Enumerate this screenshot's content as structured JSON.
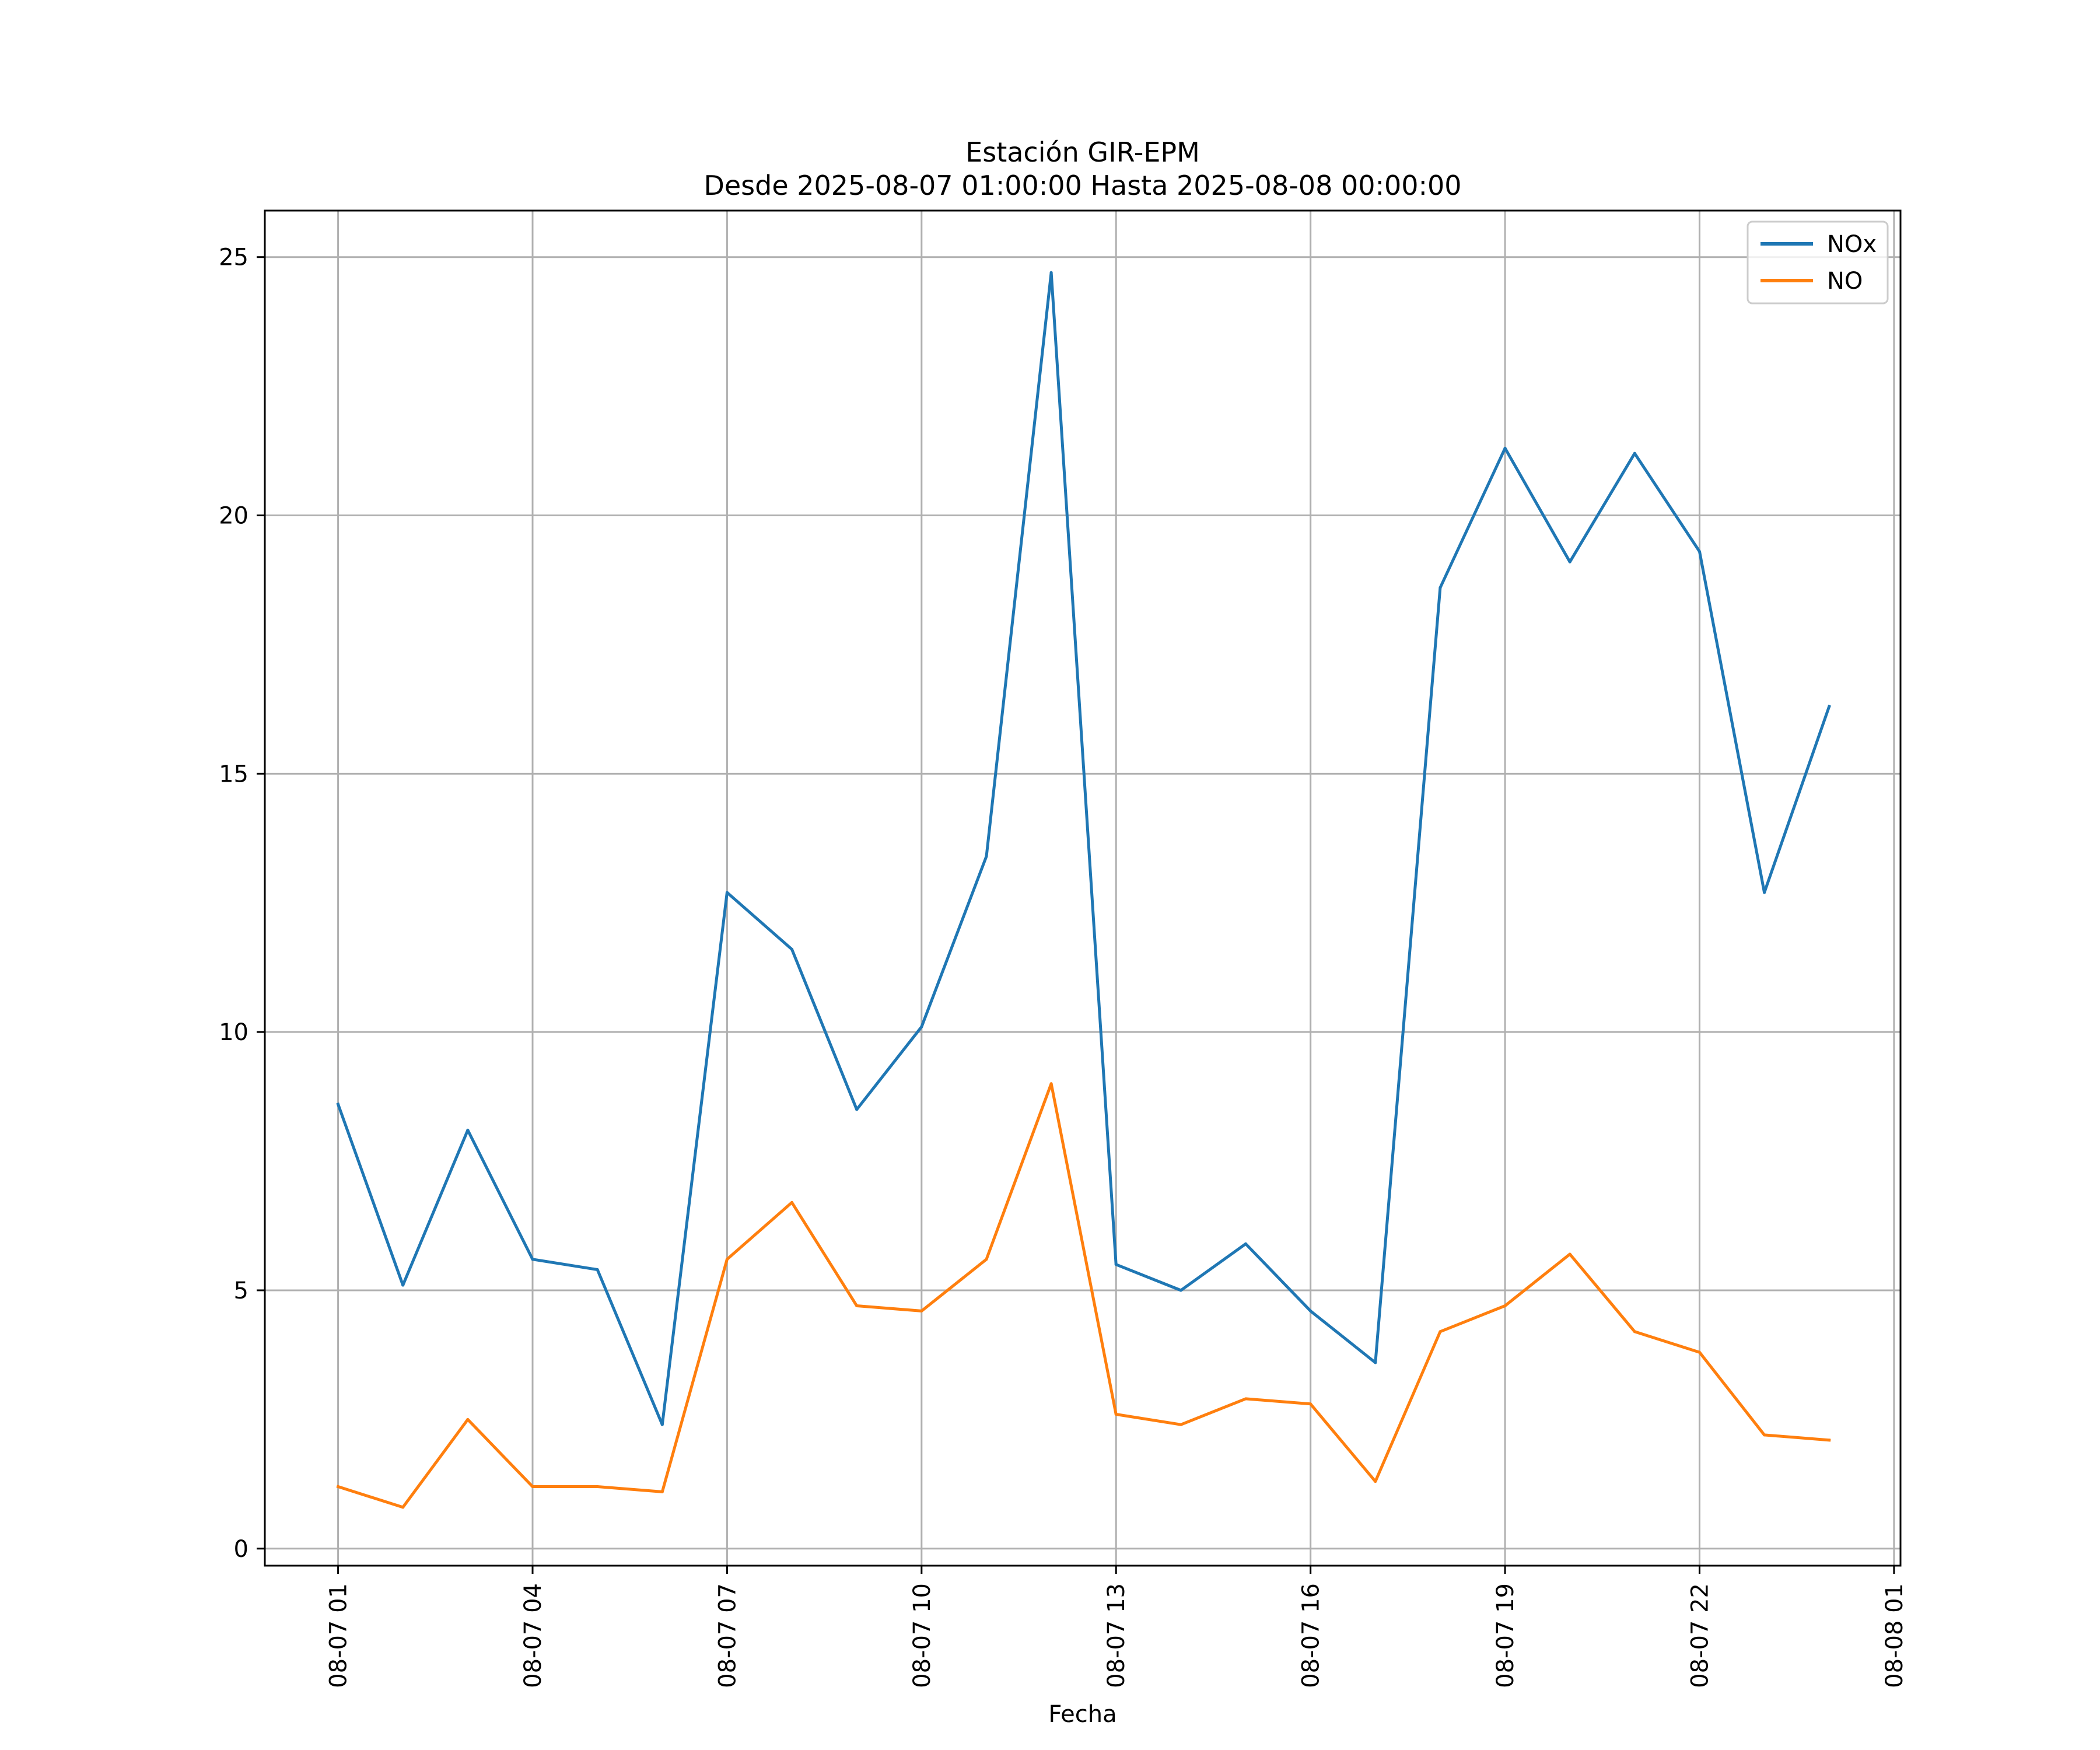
{
  "chart_data": {
    "type": "line",
    "title_line1": "Estación GIR-EPM",
    "title_line2": "Desde 2025-08-07 01:00:00 Hasta 2025-08-08 00:00:00",
    "xlabel": "Fecha",
    "ylabel": "",
    "x_hours": [
      1,
      2,
      3,
      4,
      5,
      6,
      7,
      8,
      9,
      10,
      11,
      12,
      13,
      14,
      15,
      16,
      17,
      18,
      19,
      20,
      21,
      22,
      23,
      24
    ],
    "xlim": [
      -0.13,
      25.1
    ],
    "ylim": [
      -0.33,
      25.9
    ],
    "xticks": [
      {
        "hour": 1,
        "label": "08-07 01"
      },
      {
        "hour": 4,
        "label": "08-07 04"
      },
      {
        "hour": 7,
        "label": "08-07 07"
      },
      {
        "hour": 10,
        "label": "08-07 10"
      },
      {
        "hour": 13,
        "label": "08-07 13"
      },
      {
        "hour": 16,
        "label": "08-07 16"
      },
      {
        "hour": 19,
        "label": "08-07 19"
      },
      {
        "hour": 22,
        "label": "08-07 22"
      },
      {
        "hour": 25,
        "label": "08-08 01"
      }
    ],
    "yticks": [
      {
        "value": 0,
        "label": "0"
      },
      {
        "value": 5,
        "label": "5"
      },
      {
        "value": 10,
        "label": "10"
      },
      {
        "value": 15,
        "label": "15"
      },
      {
        "value": 20,
        "label": "20"
      },
      {
        "value": 25,
        "label": "25"
      }
    ],
    "grid": true,
    "legend_position": "top-right",
    "series": [
      {
        "name": "NOx",
        "color": "#1f77b4",
        "values": [
          8.6,
          5.1,
          8.1,
          5.6,
          5.4,
          2.4,
          12.7,
          11.6,
          8.5,
          10.1,
          13.4,
          24.7,
          5.5,
          5.0,
          5.9,
          4.6,
          3.6,
          18.6,
          21.3,
          19.1,
          21.2,
          19.3,
          12.7,
          16.3
        ]
      },
      {
        "name": "NO",
        "color": "#ff7f0e",
        "values": [
          1.2,
          0.8,
          2.5,
          1.2,
          1.2,
          1.1,
          5.6,
          6.7,
          4.7,
          4.6,
          5.6,
          9.0,
          2.6,
          2.4,
          2.9,
          2.8,
          1.3,
          4.2,
          4.7,
          5.7,
          4.2,
          3.8,
          2.2,
          2.1
        ]
      }
    ]
  }
}
